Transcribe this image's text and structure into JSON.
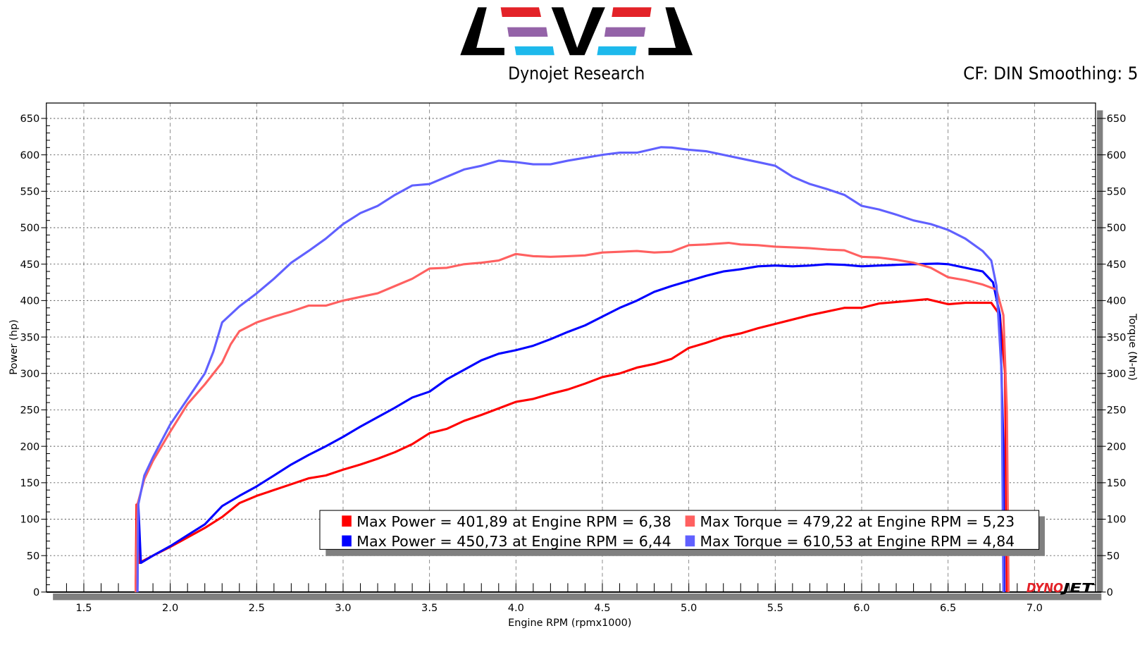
{
  "header": {
    "logo_text": "LEVEL",
    "subtitle": "Dynojet Research",
    "settings": "CF: DIN Smoothing: 5",
    "logo_colors": {
      "top": "#e32228",
      "middle": "#9463a8",
      "bottom": "#1db9ec",
      "frame": "#000000"
    }
  },
  "watermark": {
    "part1": "DYNO",
    "part2": "JET"
  },
  "chart_data": {
    "type": "line",
    "xlabel": "Engine RPM (rpmx1000)",
    "ylabel": "Power (hp)",
    "y2label": "Torque (N-m)",
    "xlim": [
      1.3,
      7.4
    ],
    "ylim": [
      0,
      660
    ],
    "y2lim": [
      0,
      660
    ],
    "xticks": [
      "1.5",
      "2.0",
      "2.5",
      "3.0",
      "3.5",
      "4.0",
      "4.5",
      "5.0",
      "5.5",
      "6.0",
      "6.5",
      "7.0"
    ],
    "yticks": [
      "0",
      "50",
      "100",
      "150",
      "200",
      "250",
      "300",
      "350",
      "400",
      "450",
      "500",
      "550",
      "600",
      "650"
    ],
    "grid": true,
    "legend_placement": "bottom-center",
    "series": [
      {
        "axis": "left",
        "color": "#ff0000",
        "legend": "Max Power = 401,89 at Engine RPM = 6,38",
        "points": [
          [
            1.8,
            0
          ],
          [
            1.805,
            120
          ],
          [
            1.82,
            40
          ],
          [
            1.9,
            50
          ],
          [
            2.0,
            62
          ],
          [
            2.1,
            75
          ],
          [
            2.2,
            88
          ],
          [
            2.3,
            103
          ],
          [
            2.4,
            122
          ],
          [
            2.5,
            132
          ],
          [
            2.6,
            140
          ],
          [
            2.7,
            148
          ],
          [
            2.8,
            156
          ],
          [
            2.9,
            160
          ],
          [
            3.0,
            168
          ],
          [
            3.1,
            175
          ],
          [
            3.2,
            183
          ],
          [
            3.3,
            192
          ],
          [
            3.4,
            203
          ],
          [
            3.5,
            218
          ],
          [
            3.6,
            224
          ],
          [
            3.7,
            235
          ],
          [
            3.8,
            243
          ],
          [
            3.9,
            252
          ],
          [
            4.0,
            261
          ],
          [
            4.1,
            265
          ],
          [
            4.2,
            272
          ],
          [
            4.3,
            278
          ],
          [
            4.4,
            286
          ],
          [
            4.5,
            295
          ],
          [
            4.6,
            300
          ],
          [
            4.7,
            308
          ],
          [
            4.8,
            313
          ],
          [
            4.9,
            320
          ],
          [
            5.0,
            335
          ],
          [
            5.1,
            342
          ],
          [
            5.2,
            350
          ],
          [
            5.3,
            355
          ],
          [
            5.4,
            362
          ],
          [
            5.5,
            368
          ],
          [
            5.6,
            374
          ],
          [
            5.7,
            380
          ],
          [
            5.8,
            385
          ],
          [
            5.9,
            390
          ],
          [
            6.0,
            390
          ],
          [
            6.1,
            396
          ],
          [
            6.2,
            398
          ],
          [
            6.38,
            401.89
          ],
          [
            6.5,
            395
          ],
          [
            6.6,
            397
          ],
          [
            6.75,
            397
          ],
          [
            6.8,
            380
          ],
          [
            6.83,
            300
          ],
          [
            6.84,
            0
          ]
        ]
      },
      {
        "axis": "left",
        "color": "#0000ff",
        "legend": "Max Power = 450,73 at Engine RPM = 6,44",
        "points": [
          [
            1.81,
            0
          ],
          [
            1.815,
            120
          ],
          [
            1.83,
            40
          ],
          [
            1.9,
            50
          ],
          [
            2.0,
            63
          ],
          [
            2.1,
            78
          ],
          [
            2.2,
            93
          ],
          [
            2.3,
            118
          ],
          [
            2.4,
            132
          ],
          [
            2.5,
            145
          ],
          [
            2.6,
            160
          ],
          [
            2.7,
            175
          ],
          [
            2.8,
            188
          ],
          [
            2.9,
            200
          ],
          [
            3.0,
            213
          ],
          [
            3.1,
            227
          ],
          [
            3.2,
            240
          ],
          [
            3.3,
            253
          ],
          [
            3.4,
            267
          ],
          [
            3.5,
            275
          ],
          [
            3.6,
            292
          ],
          [
            3.7,
            305
          ],
          [
            3.8,
            318
          ],
          [
            3.9,
            327
          ],
          [
            4.0,
            332
          ],
          [
            4.1,
            338
          ],
          [
            4.2,
            347
          ],
          [
            4.3,
            357
          ],
          [
            4.4,
            366
          ],
          [
            4.5,
            378
          ],
          [
            4.6,
            390
          ],
          [
            4.7,
            400
          ],
          [
            4.8,
            412
          ],
          [
            4.9,
            420
          ],
          [
            5.0,
            427
          ],
          [
            5.1,
            434
          ],
          [
            5.2,
            440
          ],
          [
            5.3,
            443
          ],
          [
            5.4,
            447
          ],
          [
            5.5,
            448
          ],
          [
            5.6,
            447
          ],
          [
            5.7,
            448
          ],
          [
            5.8,
            450
          ],
          [
            5.9,
            449
          ],
          [
            6.0,
            447
          ],
          [
            6.1,
            448
          ],
          [
            6.2,
            449
          ],
          [
            6.3,
            450
          ],
          [
            6.44,
            450.73
          ],
          [
            6.5,
            450
          ],
          [
            6.6,
            445
          ],
          [
            6.7,
            440
          ],
          [
            6.76,
            425
          ],
          [
            6.8,
            380
          ],
          [
            6.82,
            200
          ],
          [
            6.825,
            0
          ]
        ]
      },
      {
        "axis": "right",
        "color": "#ff6060",
        "legend": "Max Torque = 479,22 at Engine RPM = 5,23",
        "points": [
          [
            1.8,
            0
          ],
          [
            1.81,
            120
          ],
          [
            1.85,
            155
          ],
          [
            1.9,
            180
          ],
          [
            2.0,
            220
          ],
          [
            2.1,
            258
          ],
          [
            2.2,
            285
          ],
          [
            2.3,
            315
          ],
          [
            2.35,
            340
          ],
          [
            2.4,
            358
          ],
          [
            2.5,
            370
          ],
          [
            2.6,
            378
          ],
          [
            2.7,
            385
          ],
          [
            2.8,
            393
          ],
          [
            2.9,
            393
          ],
          [
            3.0,
            400
          ],
          [
            3.1,
            405
          ],
          [
            3.2,
            410
          ],
          [
            3.3,
            420
          ],
          [
            3.4,
            430
          ],
          [
            3.5,
            444
          ],
          [
            3.6,
            445
          ],
          [
            3.7,
            450
          ],
          [
            3.8,
            452
          ],
          [
            3.9,
            455
          ],
          [
            4.0,
            464
          ],
          [
            4.1,
            461
          ],
          [
            4.2,
            460
          ],
          [
            4.3,
            461
          ],
          [
            4.4,
            462
          ],
          [
            4.5,
            466
          ],
          [
            4.6,
            467
          ],
          [
            4.7,
            468
          ],
          [
            4.8,
            466
          ],
          [
            4.9,
            467
          ],
          [
            5.0,
            476
          ],
          [
            5.1,
            477
          ],
          [
            5.23,
            479.22
          ],
          [
            5.3,
            477
          ],
          [
            5.4,
            476
          ],
          [
            5.5,
            474
          ],
          [
            5.6,
            473
          ],
          [
            5.7,
            472
          ],
          [
            5.8,
            470
          ],
          [
            5.9,
            469
          ],
          [
            6.0,
            460
          ],
          [
            6.1,
            459
          ],
          [
            6.2,
            456
          ],
          [
            6.3,
            452
          ],
          [
            6.4,
            445
          ],
          [
            6.5,
            432
          ],
          [
            6.6,
            428
          ],
          [
            6.7,
            422
          ],
          [
            6.78,
            415
          ],
          [
            6.82,
            380
          ],
          [
            6.84,
            250
          ],
          [
            6.85,
            0
          ]
        ]
      },
      {
        "axis": "right",
        "color": "#6060ff",
        "legend": "Max Torque = 610,53 at Engine RPM = 4,84",
        "points": [
          [
            1.81,
            0
          ],
          [
            1.815,
            120
          ],
          [
            1.85,
            160
          ],
          [
            1.9,
            185
          ],
          [
            2.0,
            230
          ],
          [
            2.1,
            265
          ],
          [
            2.2,
            300
          ],
          [
            2.25,
            330
          ],
          [
            2.3,
            370
          ],
          [
            2.4,
            392
          ],
          [
            2.5,
            410
          ],
          [
            2.6,
            430
          ],
          [
            2.7,
            452
          ],
          [
            2.8,
            468
          ],
          [
            2.9,
            485
          ],
          [
            3.0,
            505
          ],
          [
            3.1,
            520
          ],
          [
            3.2,
            530
          ],
          [
            3.3,
            545
          ],
          [
            3.4,
            558
          ],
          [
            3.5,
            560
          ],
          [
            3.6,
            570
          ],
          [
            3.7,
            580
          ],
          [
            3.8,
            585
          ],
          [
            3.9,
            592
          ],
          [
            4.0,
            590
          ],
          [
            4.1,
            587
          ],
          [
            4.2,
            587
          ],
          [
            4.3,
            592
          ],
          [
            4.4,
            596
          ],
          [
            4.5,
            600
          ],
          [
            4.6,
            603
          ],
          [
            4.7,
            603
          ],
          [
            4.84,
            610.53
          ],
          [
            4.9,
            610
          ],
          [
            5.0,
            607
          ],
          [
            5.1,
            605
          ],
          [
            5.2,
            600
          ],
          [
            5.3,
            595
          ],
          [
            5.4,
            590
          ],
          [
            5.5,
            585
          ],
          [
            5.6,
            570
          ],
          [
            5.7,
            560
          ],
          [
            5.8,
            553
          ],
          [
            5.9,
            545
          ],
          [
            6.0,
            530
          ],
          [
            6.1,
            525
          ],
          [
            6.2,
            518
          ],
          [
            6.3,
            510
          ],
          [
            6.4,
            505
          ],
          [
            6.5,
            497
          ],
          [
            6.6,
            485
          ],
          [
            6.7,
            468
          ],
          [
            6.75,
            455
          ],
          [
            6.78,
            420
          ],
          [
            6.81,
            300
          ],
          [
            6.82,
            0
          ]
        ]
      }
    ]
  }
}
